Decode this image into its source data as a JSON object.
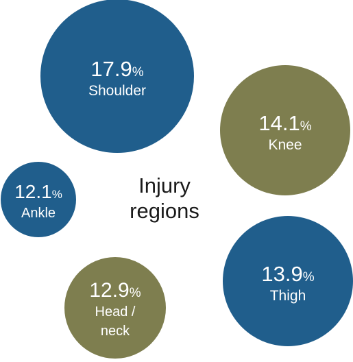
{
  "chart_data": {
    "type": "bubble",
    "title": "",
    "center_label": [
      "Injury",
      "regions"
    ],
    "unit": "%",
    "colors": {
      "blue": "#205E8C",
      "olive": "#7E7E4F"
    },
    "bubbles": [
      {
        "label": [
          "Shoulder"
        ],
        "value": 17.9,
        "value_text": "17.9",
        "color": "blue"
      },
      {
        "label": [
          "Knee"
        ],
        "value": 14.1,
        "value_text": "14.1",
        "color": "olive"
      },
      {
        "label": [
          "Ankle"
        ],
        "value": 12.1,
        "value_text": "12.1",
        "color": "blue"
      },
      {
        "label": [
          "Thigh"
        ],
        "value": 13.9,
        "value_text": "13.9",
        "color": "blue"
      },
      {
        "label": [
          "Head /",
          "neck"
        ],
        "value": 12.9,
        "value_text": "12.9",
        "color": "olive"
      }
    ]
  }
}
